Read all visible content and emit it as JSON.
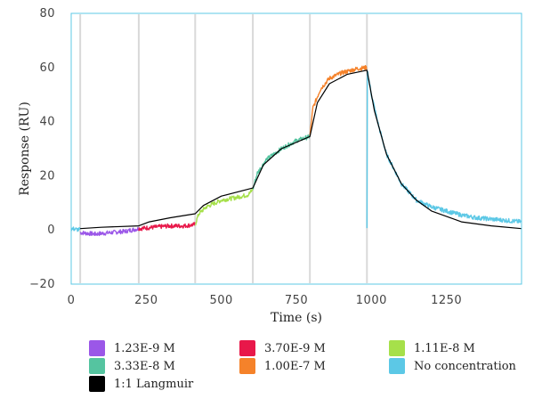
{
  "chart_data": {
    "type": "line",
    "xlabel": "Time (s)",
    "ylabel": "Response (RU)",
    "xlim": [
      0,
      1500
    ],
    "ylim": [
      -20,
      80
    ],
    "x_ticks": [
      "0",
      "250",
      "500",
      "750",
      "1000",
      "1250"
    ],
    "y_ticks": [
      "−20",
      "0",
      "20",
      "40",
      "60",
      "80"
    ],
    "injection_markers": [
      30,
      225,
      413,
      605,
      795,
      985
    ],
    "series": [
      {
        "name": "1.23E-9 M",
        "color": "#9b57e8",
        "x": [
          30,
          80,
          130,
          180,
          225
        ],
        "y": [
          -1.0,
          -1.5,
          -1.0,
          -0.5,
          0.5
        ]
      },
      {
        "name": "3.70E-9 M",
        "color": "#e8184a",
        "x": [
          225,
          275,
          325,
          375,
          413
        ],
        "y": [
          0.5,
          1.0,
          1.5,
          1.5,
          2.0
        ]
      },
      {
        "name": "1.11E-8 M",
        "color": "#a6e04a",
        "x": [
          413,
          425,
          450,
          500,
          550,
          590,
          605
        ],
        "y": [
          2.0,
          6.0,
          8.5,
          11.0,
          12.0,
          13.0,
          15.0
        ]
      },
      {
        "name": "3.33E-8 M",
        "color": "#55c4a0",
        "x": [
          605,
          620,
          650,
          700,
          750,
          795
        ],
        "y": [
          15.0,
          21.0,
          26.0,
          30.0,
          33.0,
          34.5
        ]
      },
      {
        "name": "1.00E-7 M",
        "color": "#f5822a",
        "x": [
          795,
          805,
          830,
          860,
          900,
          950,
          985
        ],
        "y": [
          34.5,
          45.0,
          52.0,
          56.0,
          58.0,
          59.5,
          60.0
        ]
      },
      {
        "name": "No concentration",
        "color": "#5cc8e6",
        "x": [
          0,
          30,
          985,
          1000,
          1025,
          1050,
          1100,
          1150,
          1200,
          1250,
          1300,
          1350,
          1400,
          1450,
          1500
        ],
        "y": [
          0.5,
          0.0,
          60.0,
          50.0,
          38.0,
          28.0,
          17.0,
          11.0,
          8.5,
          7.0,
          5.5,
          4.5,
          4.0,
          3.5,
          3.0
        ]
      },
      {
        "name": "1:1 Langmuir",
        "color": "#000000",
        "x": [
          30,
          100,
          225,
          260,
          330,
          413,
          440,
          500,
          605,
          640,
          700,
          795,
          820,
          860,
          920,
          985,
          1010,
          1050,
          1100,
          1150,
          1200,
          1300,
          1400,
          1500
        ],
        "y": [
          0.5,
          1.0,
          1.5,
          3.0,
          4.5,
          6.0,
          9.0,
          12.5,
          15.5,
          24.0,
          30.0,
          34.5,
          47.0,
          54.0,
          57.5,
          59.0,
          44.0,
          28.0,
          17.0,
          11.0,
          7.0,
          3.0,
          1.5,
          0.5
        ]
      }
    ]
  }
}
